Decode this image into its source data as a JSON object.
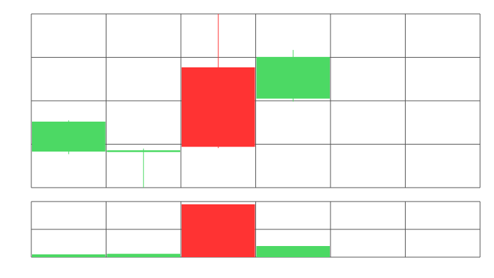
{
  "chart_data": {
    "type": "candlestick",
    "categories": [
      null,
      null,
      null,
      null,
      null,
      null
    ],
    "open": [
      0.83,
      0.82,
      2.77,
      2.05,
      null,
      null
    ],
    "high": [
      1.55,
      0.9,
      4,
      3.17,
      null,
      null
    ],
    "low": [
      0.77,
      0,
      0.91,
      1.98,
      null,
      null
    ],
    "close": [
      1.52,
      0.86,
      0.94,
      3.01,
      null,
      null
    ],
    "volume": [
      0.1,
      0.12,
      1.9,
      0.4,
      null,
      null
    ],
    "up_color": "#4cd964",
    "down_color": "#ff3333",
    "ylim": [
      0,
      4
    ],
    "yticks": [
      0,
      1,
      2,
      3,
      4
    ],
    "volume_ylim": [
      0,
      2
    ],
    "volume_yticks": [
      0,
      1,
      2
    ],
    "grid": true
  }
}
